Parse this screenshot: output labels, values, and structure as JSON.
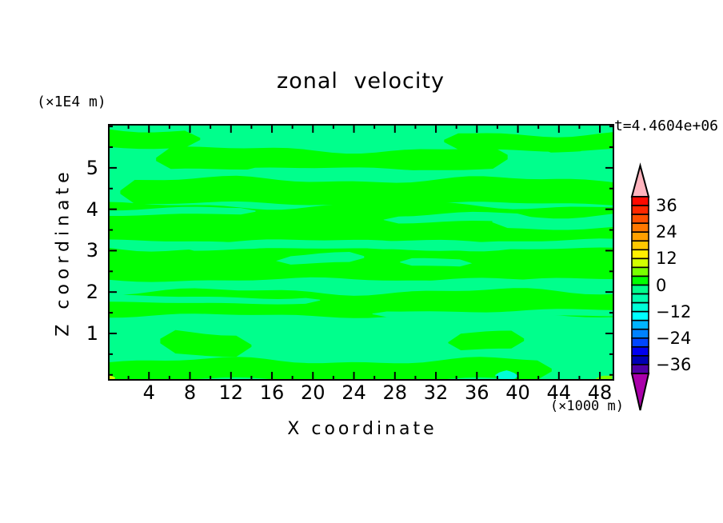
{
  "background_color": "#FFFFFF",
  "title": "zonal velocity",
  "time_label": "t=4.4604e+06",
  "axes": {
    "x": {
      "label": "X coordinate",
      "unit": "(×1000 m)",
      "range": [
        0,
        49.4
      ],
      "major_ticks": [
        {
          "v": 4,
          "label": "4"
        },
        {
          "v": 8,
          "label": "8"
        },
        {
          "v": 12,
          "label": "12"
        },
        {
          "v": 16,
          "label": "16"
        },
        {
          "v": 20,
          "label": "20"
        },
        {
          "v": 24,
          "label": "24"
        },
        {
          "v": 28,
          "label": "28"
        },
        {
          "v": 32,
          "label": "32"
        },
        {
          "v": 36,
          "label": "36"
        },
        {
          "v": 40,
          "label": "40"
        },
        {
          "v": 44,
          "label": "44"
        },
        {
          "v": 48,
          "label": "48"
        }
      ],
      "minor_ticks": [
        2,
        6,
        10,
        14,
        18,
        22,
        26,
        30,
        34,
        38,
        42,
        46
      ]
    },
    "y": {
      "label": "Z coordinate",
      "unit": "(×1E4 m)",
      "range": [
        -0.14,
        6.06
      ],
      "major_ticks": [
        {
          "v": 5,
          "label": "5"
        },
        {
          "v": 4,
          "label": "4"
        },
        {
          "v": 3,
          "label": "3"
        },
        {
          "v": 2,
          "label": "2"
        },
        {
          "v": 1,
          "label": "1"
        }
      ],
      "minor_ticks": [
        0,
        0.5,
        1.5,
        2.5,
        3.5,
        4.5,
        5.5,
        6
      ]
    }
  },
  "colorbar": {
    "orientation": "vertical",
    "level_min": -40,
    "level_max": 40,
    "level_step": 4,
    "cell_colors_bottom_to_top": [
      "#5000A5",
      "#0000B4",
      "#0000F0",
      "#0046FF",
      "#0082FF",
      "#00B4FF",
      "#00FFFF",
      "#00FFD7",
      "#00FFAF",
      "#00FF8C",
      "#00FF00",
      "#78FF00",
      "#D2FF00",
      "#FFF000",
      "#FFC800",
      "#FFA000",
      "#FF7800",
      "#FF5000",
      "#FF2800",
      "#FF0A00"
    ],
    "over_arrow_color": "#FFB4BE",
    "under_arrow_color": "#AA00AA",
    "tick_labels": [
      {
        "v": 36,
        "label": "36"
      },
      {
        "v": 24,
        "label": "24"
      },
      {
        "v": 12,
        "label": "12"
      },
      {
        "v": 0,
        "label": "0"
      },
      {
        "v": -12,
        "label": "−12"
      },
      {
        "v": -24,
        "label": "−24"
      },
      {
        "v": -36,
        "label": "−36"
      }
    ]
  },
  "chart_data": {
    "type": "filled_contour",
    "title": "zonal velocity",
    "xlabel": "X coordinate (×1000 m)",
    "ylabel": "Z coordinate (×1E4 m)",
    "x_range": [
      0,
      49.4
    ],
    "z_range": [
      -0.14,
      6.06
    ],
    "contour_interval": 4,
    "colorbar_range": [
      -40,
      40
    ],
    "background_level": {
      "range": [
        -4,
        0
      ],
      "color": "#00FF8C"
    },
    "positive_level": {
      "range": [
        0,
        4
      ],
      "color": "#00FF00"
    },
    "green_bands": [
      [
        0,
        9.0,
        5.72,
        0.43
      ],
      [
        4.7,
        39.0,
        5.19,
        0.5
      ],
      [
        32.8,
        49.4,
        5.64,
        0.39
      ],
      [
        42.5,
        46.8,
        5.45,
        0.17
      ],
      [
        1.2,
        49.4,
        4.42,
        0.58
      ],
      [
        0,
        49.4,
        3.65,
        0.87
      ],
      [
        0,
        49.4,
        2.68,
        0.77
      ],
      [
        0,
        49.4,
        1.72,
        0.58
      ],
      [
        5.1,
        14.0,
        0.75,
        0.54
      ],
      [
        33.2,
        40.6,
        0.85,
        0.43
      ],
      [
        0,
        43.3,
        0.11,
        0.46
      ]
    ],
    "mint_lenses": [
      [
        12.9,
        33.2,
        4.9,
        0.15
      ],
      [
        26.9,
        41.4,
        3.78,
        0.19
      ],
      [
        16.4,
        25.0,
        2.82,
        0.23
      ],
      [
        28.5,
        35.5,
        2.74,
        0.19
      ],
      [
        0,
        14.4,
        3.94,
        0.15
      ],
      [
        37.5,
        49.4,
        3.71,
        0.31
      ],
      [
        7.0,
        49.4,
        3.13,
        0.19
      ],
      [
        20.7,
        49.4,
        2.2,
        0.17
      ],
      [
        0,
        20.7,
        1.81,
        0.15
      ],
      [
        25.8,
        49.4,
        1.48,
        0.14
      ]
    ],
    "extra_patches": [
      {
        "x": [
          47.6,
          49.2
        ],
        "z": [
          -0.14,
          0.02
        ],
        "color": "#78FF00",
        "level": "4 to 8"
      },
      {
        "x": [
          37.8,
          40.0
        ],
        "z": [
          -0.14,
          0.12
        ],
        "color": "#00FFD7",
        "level": "-12 to -8"
      },
      {
        "x": [
          0,
          0.7
        ],
        "z": [
          -0.14,
          0.0
        ],
        "color": "#D2FF00",
        "level": "8 to 12"
      }
    ]
  }
}
